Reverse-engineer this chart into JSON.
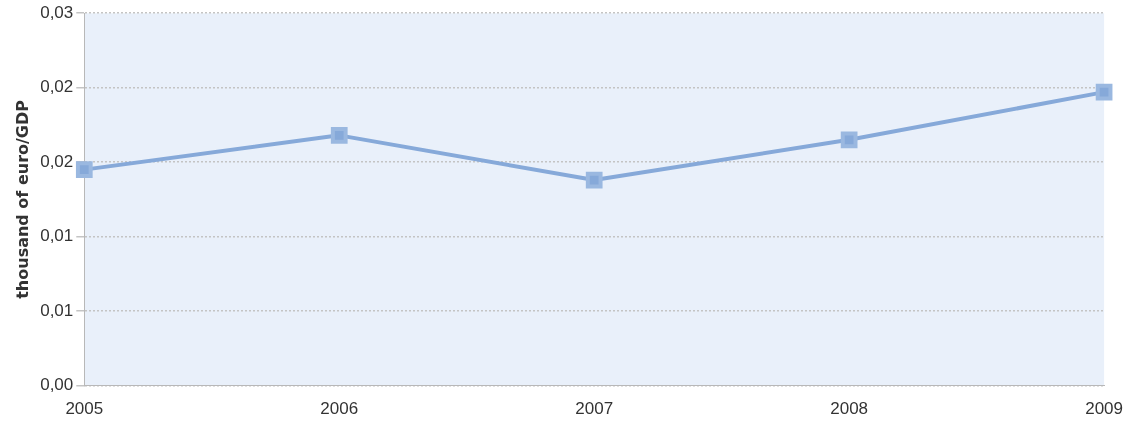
{
  "chart_data": {
    "type": "line",
    "ylabel": "thousand of euro/GDP",
    "categories": [
      "2005",
      "2006",
      "2007",
      "2008",
      "2009"
    ],
    "series": [
      {
        "color": "#86a9d9",
        "values": [
          0.0145,
          0.0168,
          0.0138,
          0.0165,
          0.0197
        ]
      }
    ],
    "ylim": [
      0,
      0.025
    ],
    "yticks": [
      {
        "value": 0,
        "label": "0,00"
      },
      {
        "value": 0.005,
        "label": "0,01"
      },
      {
        "value": 0.01,
        "label": "0,01"
      },
      {
        "value": 0.015,
        "label": "0,02"
      },
      {
        "value": 0.02,
        "label": "0,02"
      },
      {
        "value": 0.025,
        "label": "0,03"
      }
    ],
    "grid": "y",
    "legend": false,
    "marker": "square",
    "line_style": "solid"
  }
}
